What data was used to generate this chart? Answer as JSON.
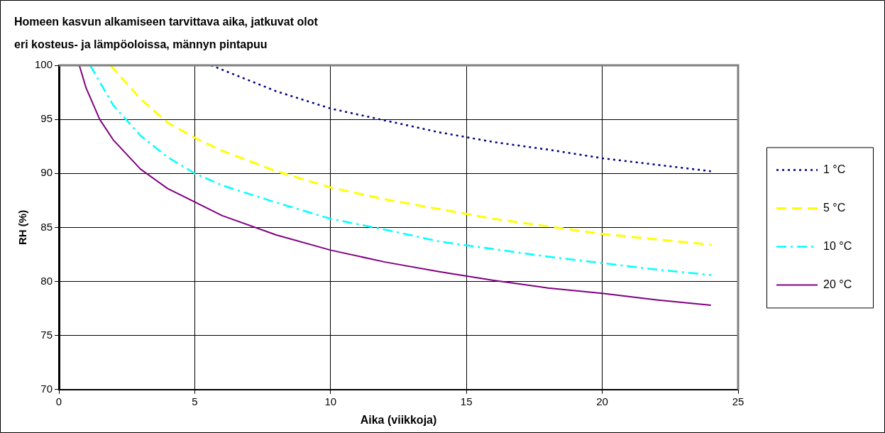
{
  "chart_data": {
    "type": "line",
    "title": "Homeen kasvun alkamiseen tarvittava aika, jatkuvat olot\neri kosteus- ja lämpöoloissa, männyn pintapuu",
    "xlabel": "Aika (viikkoja)",
    "ylabel": "RH (%)",
    "xlim": [
      0,
      25
    ],
    "xticks": [
      0,
      5,
      10,
      15,
      20,
      25
    ],
    "ylim": [
      70,
      100
    ],
    "yticks": [
      70,
      75,
      80,
      85,
      90,
      95,
      100
    ],
    "grid": true,
    "legend": "right",
    "marker": "none",
    "series": [
      {
        "name": "1 °C",
        "color": "#000080",
        "line_style": "dotted",
        "x": [
          5.6,
          6,
          8,
          10,
          12,
          14,
          16,
          18,
          20,
          22,
          24
        ],
        "values": [
          100,
          99.6,
          97.6,
          96.0,
          94.9,
          93.8,
          92.9,
          92.2,
          91.4,
          90.8,
          90.2
        ]
      },
      {
        "name": "5 °C",
        "color": "#ffff00",
        "line_style": "dashed",
        "x": [
          1.9,
          3,
          4,
          5,
          6,
          8,
          10,
          12,
          14,
          16,
          18,
          20,
          22,
          24
        ],
        "values": [
          100,
          96.9,
          94.7,
          93.3,
          92.1,
          90.2,
          88.7,
          87.6,
          86.7,
          85.8,
          85.1,
          84.4,
          83.9,
          83.4
        ]
      },
      {
        "name": "10 °C",
        "color": "#00ffff",
        "line_style": "dashdot",
        "x": [
          1.15,
          2,
          3,
          4,
          5,
          6,
          8,
          10,
          12,
          14,
          16,
          18,
          20,
          22,
          24
        ],
        "values": [
          100,
          96.3,
          93.5,
          91.5,
          90.0,
          88.9,
          87.3,
          85.8,
          84.8,
          83.7,
          83.0,
          82.3,
          81.7,
          81.1,
          80.6
        ]
      },
      {
        "name": "20 °C",
        "color": "#800080",
        "line_style": "solid",
        "x": [
          0.75,
          1,
          1.5,
          2,
          3,
          4,
          6,
          8,
          10,
          12,
          14,
          16,
          18,
          20,
          22,
          24
        ],
        "values": [
          100,
          97.9,
          95,
          93.1,
          90.4,
          88.6,
          86.1,
          84.3,
          82.9,
          81.8,
          80.9,
          80.1,
          79.4,
          78.9,
          78.3,
          77.8
        ]
      }
    ]
  }
}
